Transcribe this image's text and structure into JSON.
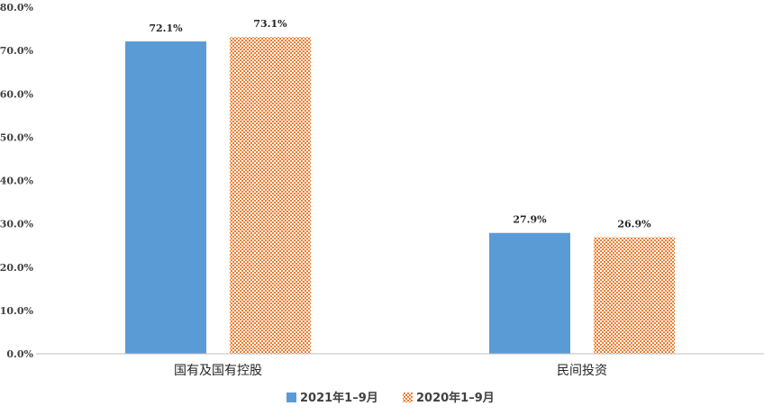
{
  "chart_data": {
    "type": "bar",
    "categories": [
      "国有及国有控股",
      "民间投资"
    ],
    "series": [
      {
        "name": "2021年1–9月",
        "values": [
          72.1,
          27.9
        ],
        "labels": [
          "72.1%",
          "27.9%"
        ],
        "color": "#5B9BD5",
        "pattern": "solid"
      },
      {
        "name": "2020年1–9月",
        "values": [
          73.1,
          26.9
        ],
        "labels": [
          "73.1%",
          "26.9%"
        ],
        "color": "#ED7D31",
        "pattern": "checker"
      }
    ],
    "yticks": [
      "0.0%",
      "10.0%",
      "20.0%",
      "30.0%",
      "40.0%",
      "50.0%",
      "60.0%",
      "70.0%",
      "80.0%"
    ],
    "ylim": [
      0,
      80
    ],
    "grid": false,
    "legend_position": "bottom"
  }
}
